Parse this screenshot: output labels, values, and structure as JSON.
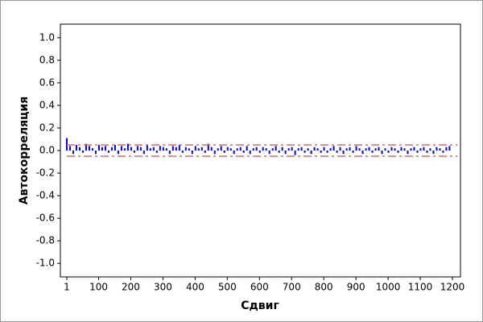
{
  "chart_data": {
    "type": "acf",
    "xlabel": "Сдвиг",
    "ylabel": "Автокорреляция",
    "x": [
      1,
      11,
      21,
      31,
      41,
      51,
      61,
      71,
      81,
      91,
      101,
      111,
      121,
      131,
      141,
      151,
      161,
      171,
      181,
      191,
      201,
      211,
      221,
      231,
      241,
      251,
      261,
      271,
      281,
      291,
      301,
      311,
      321,
      331,
      341,
      351,
      361,
      371,
      381,
      391,
      401,
      411,
      421,
      431,
      441,
      451,
      461,
      471,
      481,
      491,
      501,
      511,
      521,
      531,
      541,
      551,
      561,
      571,
      581,
      591,
      601,
      611,
      621,
      631,
      641,
      651,
      661,
      671,
      681,
      691,
      701,
      711,
      721,
      731,
      741,
      751,
      761,
      771,
      781,
      791,
      801,
      811,
      821,
      831,
      841,
      851,
      861,
      871,
      881,
      891,
      901,
      911,
      921,
      931,
      941,
      951,
      961,
      971,
      981,
      991,
      1001,
      1011,
      1021,
      1031,
      1041,
      1051,
      1061,
      1071,
      1081,
      1091,
      1101,
      1111,
      1121,
      1131,
      1141,
      1151,
      1161,
      1171,
      1181,
      1191
    ],
    "values": [
      0.11,
      0.04,
      -0.03,
      0.05,
      0.03,
      -0.02,
      0.06,
      0.04,
      0.02,
      -0.03,
      0.05,
      0.03,
      0.04,
      -0.02,
      0.03,
      0.05,
      -0.03,
      0.04,
      0.02,
      0.06,
      0.03,
      -0.02,
      0.04,
      0.03,
      -0.03,
      0.05,
      0.02,
      0.03,
      -0.02,
      0.04,
      0.03,
      0.02,
      -0.03,
      0.04,
      0.03,
      0.05,
      -0.02,
      0.03,
      0.02,
      -0.03,
      0.04,
      0.02,
      0.03,
      -0.02,
      0.06,
      0.03,
      -0.03,
      0.02,
      0.04,
      -0.02,
      0.03,
      0.02,
      -0.03,
      0.02,
      0.03,
      -0.02,
      0.04,
      -0.03,
      0.02,
      0.03,
      -0.02,
      0.03,
      0.02,
      -0.03,
      0.02,
      0.04,
      -0.02,
      0.03,
      -0.03,
      0.02,
      0.03,
      -0.04,
      0.02,
      0.03,
      -0.02,
      0.02,
      -0.03,
      0.03,
      0.02,
      -0.02,
      0.03,
      -0.02,
      0.02,
      0.04,
      -0.02,
      0.03,
      -0.03,
      0.02,
      0.03,
      -0.02,
      0.04,
      0.02,
      -0.03,
      0.02,
      0.03,
      -0.02,
      0.02,
      0.03,
      -0.03,
      0.02,
      -0.02,
      0.03,
      0.02,
      -0.02,
      0.03,
      0.02,
      -0.03,
      0.02,
      0.03,
      -0.02,
      0.02,
      0.03,
      -0.02,
      0.02,
      -0.03,
      0.03,
      0.02,
      -0.02,
      0.03,
      0.04
    ],
    "color": "#0000ff",
    "confidence_limits": [
      -0.05,
      0.05
    ],
    "limit_color": "#e06666",
    "xlim": [
      -19,
      1225
    ],
    "xticks": [
      1,
      100,
      200,
      300,
      400,
      500,
      600,
      700,
      800,
      900,
      1000,
      1100,
      1200
    ],
    "ylim": [
      -1.12,
      1.12
    ],
    "yticks": [
      {
        "value": -1,
        "label": "-1.0"
      },
      -0.8,
      -0.6,
      -0.4,
      -0.2,
      {
        "value": 0,
        "label": "0.0"
      },
      0.2,
      0.4,
      0.6,
      0.8,
      {
        "value": 1,
        "label": "1.0"
      }
    ]
  }
}
